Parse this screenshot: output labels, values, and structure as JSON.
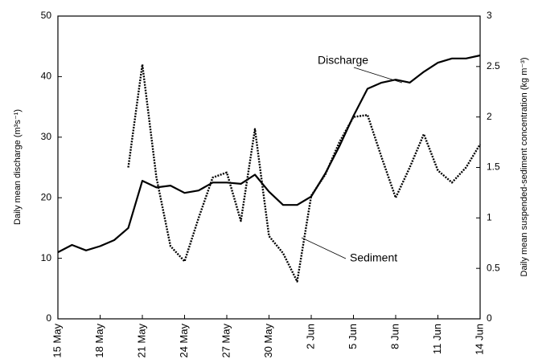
{
  "chart_data": {
    "type": "line",
    "categories": [
      "15 May",
      null,
      null,
      "18 May",
      null,
      null,
      "21 May",
      null,
      null,
      "24 May",
      null,
      null,
      "27 May",
      null,
      null,
      "30 May",
      null,
      null,
      "2 Jun",
      null,
      null,
      "5 Jun",
      null,
      null,
      "8 Jun",
      null,
      null,
      "11 Jun",
      null,
      null,
      "14 Jun"
    ],
    "y_label": "Daily mean discharge (m³s⁻¹)",
    "y2_label": "Daily mean suspended-sediment concentration (kg m⁻³)",
    "ylim": [
      0,
      50
    ],
    "yticks": [
      0,
      10,
      20,
      30,
      40,
      50
    ],
    "y2lim": [
      0,
      3
    ],
    "y2ticks": [
      0,
      0.5,
      1,
      1.5,
      2,
      2.5,
      3
    ],
    "grid": false,
    "series": [
      {
        "name": "Discharge",
        "color": "#000000",
        "style": "solid",
        "values": [
          11,
          12.2,
          11.3,
          12,
          13,
          15,
          22.8,
          21.7,
          22,
          20.8,
          21.2,
          22.5,
          22.5,
          22.3,
          23.8,
          21,
          18.8,
          18.8,
          20.2,
          24,
          28.5,
          33.5,
          38,
          39,
          39.5,
          39,
          40.8,
          42.3,
          43,
          43,
          43.5
        ]
      },
      {
        "name": "Sediment",
        "color": "#000000",
        "style": "dotted",
        "axis": "y2",
        "values": [
          null,
          null,
          null,
          null,
          null,
          1.5,
          2.52,
          1.4,
          0.72,
          0.57,
          1.0,
          1.4,
          1.45,
          0.97,
          1.88,
          0.82,
          0.65,
          0.37,
          1.22,
          1.43,
          1.75,
          2.0,
          2.02,
          1.6,
          1.2,
          1.5,
          1.83,
          1.47,
          1.35,
          1.5,
          1.73
        ]
      }
    ]
  }
}
